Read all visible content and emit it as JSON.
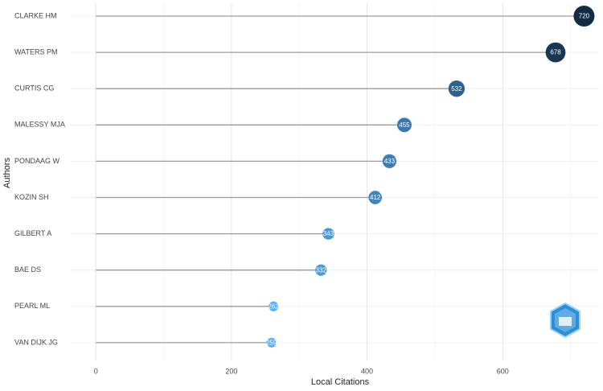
{
  "chart_data": {
    "type": "lollipop",
    "categories": [
      "CLARKE HM",
      "WATERS PM",
      "CURTIS CG",
      "MALESSY MJA",
      "PONDAAG W",
      "KOZIN SH",
      "GILBERT A",
      "BAE DS",
      "PEARL ML",
      "VAN DIJK JG"
    ],
    "values": [
      720,
      678,
      532,
      455,
      433,
      412,
      343,
      332,
      262,
      259
    ],
    "x_label": "Local Citations",
    "y_label": "Authors",
    "xlim": [
      -37,
      742
    ],
    "xticks": [
      0,
      200,
      400,
      600
    ],
    "x_minor_ticks": [
      100,
      300,
      500,
      700
    ],
    "grid": true,
    "color_low": "#56B1F7",
    "color_high": "#132B43",
    "stem_color": "#9a9a9a"
  }
}
